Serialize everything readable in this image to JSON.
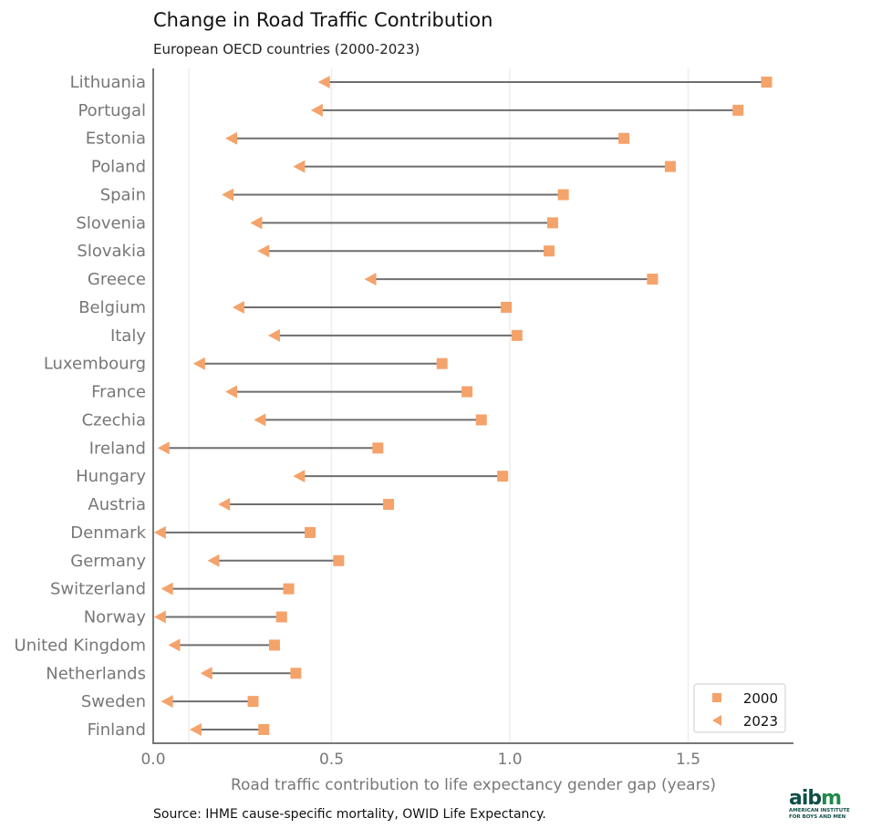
{
  "title": "Change in Road Traffic Contribution",
  "subtitle": "European OECD countries (2000-2023)",
  "source": "Source: IHME cause-specific mortality, OWID Life Expectancy.",
  "logo": {
    "text": "aibm",
    "line1": "AMERICAN INSTITUTE",
    "line2": "FOR BOYS AND MEN"
  },
  "chart_data": {
    "type": "dumbbell",
    "xlabel": "Road traffic contribution to life expectancy gender gap (years)",
    "xlim": [
      0,
      1.8
    ],
    "xticks": [
      "0.0",
      "0.5",
      "1.0",
      "1.5"
    ],
    "grid": "vertical",
    "legend_position": "bottom-right",
    "colors": {
      "marker": "#f4a36b",
      "line": "#6e6e6e"
    },
    "categories": [
      "Lithuania",
      "Portugal",
      "Estonia",
      "Poland",
      "Spain",
      "Slovenia",
      "Slovakia",
      "Greece",
      "Belgium",
      "Italy",
      "Luxembourg",
      "France",
      "Czechia",
      "Ireland",
      "Hungary",
      "Austria",
      "Denmark",
      "Germany",
      "Switzerland",
      "Norway",
      "United Kingdom",
      "Netherlands",
      "Sweden",
      "Finland"
    ],
    "series": [
      {
        "name": "2000",
        "marker": "square",
        "values": [
          1.72,
          1.64,
          1.32,
          1.45,
          1.15,
          1.12,
          1.11,
          1.4,
          0.99,
          1.02,
          0.81,
          0.88,
          0.92,
          0.63,
          0.98,
          0.66,
          0.44,
          0.52,
          0.38,
          0.36,
          0.34,
          0.4,
          0.28,
          0.31
        ]
      },
      {
        "name": "2023",
        "marker": "triangle-left",
        "values": [
          0.48,
          0.46,
          0.22,
          0.41,
          0.21,
          0.29,
          0.31,
          0.61,
          0.24,
          0.34,
          0.13,
          0.22,
          0.3,
          0.03,
          0.41,
          0.2,
          0.02,
          0.17,
          0.04,
          0.02,
          0.06,
          0.15,
          0.04,
          0.12
        ]
      }
    ]
  }
}
